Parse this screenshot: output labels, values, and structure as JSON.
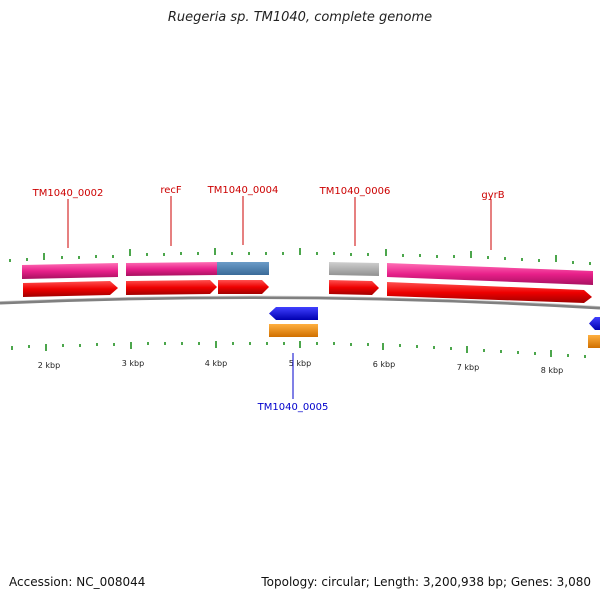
{
  "title": "Ruegeria sp. TM1040, complete genome",
  "footer": {
    "accession": "Accession: NC_008044",
    "summary": "Topology: circular; Length: 3,200,938 bp; Genes: 3,080"
  },
  "colors": {
    "cds_forward": "#ee0000",
    "gene_forward": "#e8208a",
    "gene_blue": "#4a7fb0",
    "gene_grey": "#b0b0b0",
    "cds_reverse": "#0000ee",
    "gene_reverse": "#ff8c00",
    "label_forward": "#cc0000",
    "label_reverse": "#0000cc",
    "tick": "#118811",
    "backbone": "#808080"
  },
  "scale": {
    "tick_labels": [
      "2 kbp",
      "3 kbp",
      "4 kbp",
      "5 kbp",
      "6 kbp",
      "7 kbp",
      "8 kbp"
    ]
  },
  "gene_labels": [
    {
      "text": "TM1040_0002",
      "strand": "forward"
    },
    {
      "text": "recF",
      "strand": "forward"
    },
    {
      "text": "TM1040_0004",
      "strand": "forward"
    },
    {
      "text": "TM1040_0006",
      "strand": "forward"
    },
    {
      "text": "gyrB",
      "strand": "forward"
    },
    {
      "text": "TM1040_0005",
      "strand": "reverse"
    }
  ]
}
